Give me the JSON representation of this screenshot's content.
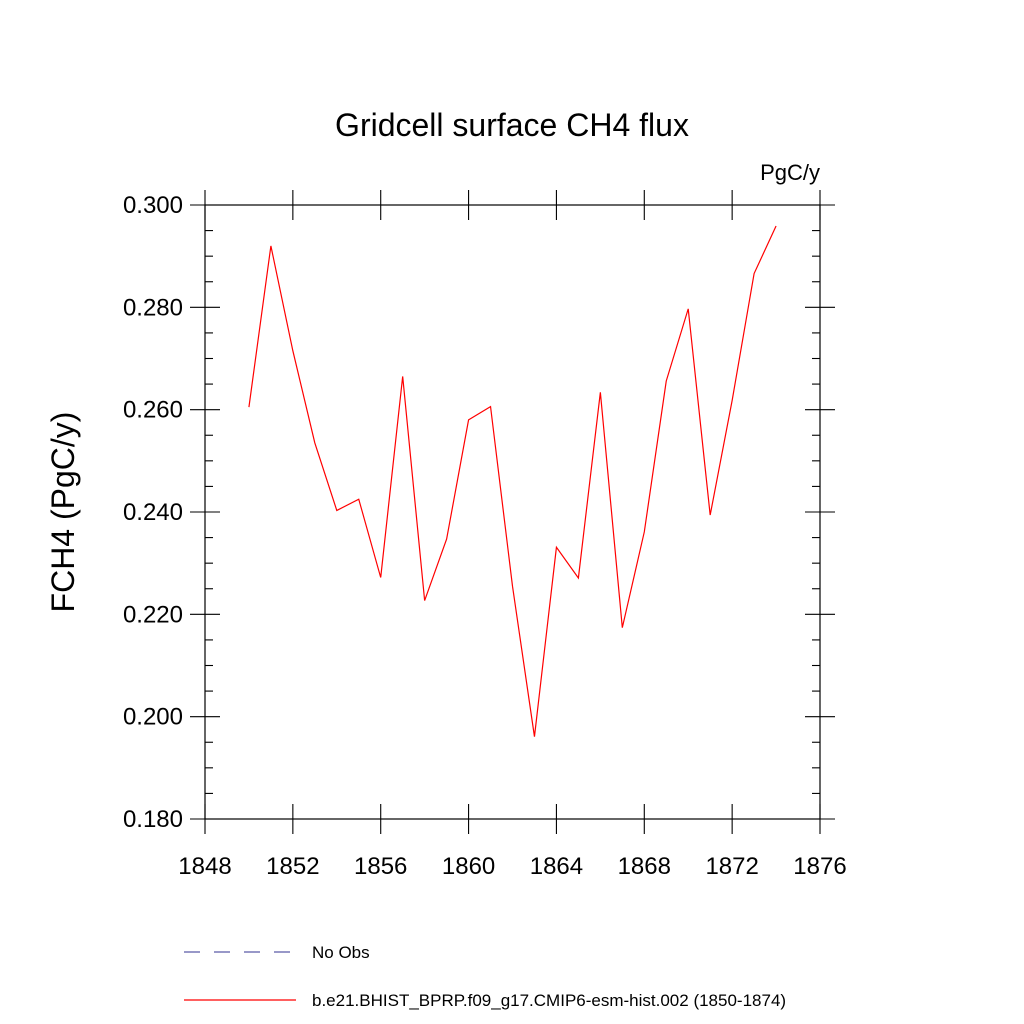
{
  "chart_data": {
    "type": "line",
    "title": "Gridcell surface CH4 flux",
    "units": "PgC/y",
    "ylabel": "FCH4  (PgC/y)",
    "xlabel": "",
    "xlim": [
      1848,
      1876
    ],
    "ylim": [
      0.18,
      0.3
    ],
    "x_ticks": [
      1848,
      1852,
      1856,
      1860,
      1864,
      1868,
      1872,
      1876
    ],
    "x_tick_labels": [
      "1848",
      "1852",
      "1856",
      "1860",
      "1864",
      "1868",
      "1872",
      "1876"
    ],
    "y_ticks": [
      0.18,
      0.2,
      0.22,
      0.24,
      0.26,
      0.28,
      0.3
    ],
    "y_tick_labels": [
      "0.180",
      "0.200",
      "0.220",
      "0.240",
      "0.260",
      "0.280",
      "0.300"
    ],
    "grid": false,
    "legend_position": "bottom",
    "series": [
      {
        "name": "b.e21.BHIST_BPRP.f09_g17.CMIP6-esm-hist.002 (1850-1874)",
        "color": "#ff0000",
        "style": "solid",
        "x": [
          1850,
          1851,
          1852,
          1853,
          1854,
          1855,
          1856,
          1857,
          1858,
          1859,
          1860,
          1861,
          1862,
          1863,
          1864,
          1865,
          1866,
          1867,
          1868,
          1869,
          1870,
          1871,
          1872,
          1873,
          1874
        ],
        "y": [
          0.2605,
          0.292,
          0.2715,
          0.2535,
          0.2403,
          0.2425,
          0.2272,
          0.2665,
          0.2227,
          0.2347,
          0.258,
          0.2606,
          0.2255,
          0.1961,
          0.2331,
          0.2271,
          0.2634,
          0.2174,
          0.2361,
          0.2656,
          0.2797,
          0.2394,
          0.2618,
          0.2866,
          0.2959
        ]
      },
      {
        "name": "No Obs",
        "color": "#5a5aa8",
        "style": "dashed",
        "x": [],
        "y": []
      }
    ]
  }
}
